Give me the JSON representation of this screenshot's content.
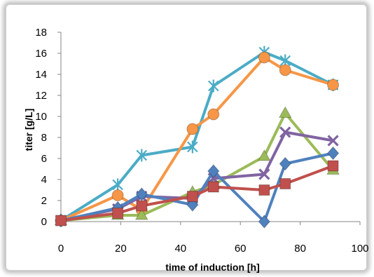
{
  "chart_data": {
    "type": "line",
    "title": "",
    "xlabel": "time of induction [h]",
    "ylabel": "titer  [g/L]",
    "xlim": [
      0,
      100
    ],
    "ylim": [
      0,
      18
    ],
    "xticks": [
      "0",
      "20",
      "40",
      "60",
      "80",
      "100"
    ],
    "yticks": [
      "0",
      "2",
      "4",
      "6",
      "8",
      "10",
      "12",
      "14",
      "16",
      "18"
    ],
    "grid": false,
    "legend": "none",
    "series": [
      {
        "color": "#4bacc6",
        "marker": "star",
        "x": [
          0,
          19,
          27,
          44,
          51,
          68,
          75,
          91
        ],
        "y": [
          0.1,
          3.5,
          6.3,
          7.1,
          12.9,
          16.1,
          15.3,
          13.0
        ]
      },
      {
        "color": "#f79646",
        "marker": "circle",
        "x": [
          0,
          19,
          27,
          44,
          51,
          68,
          75,
          91
        ],
        "y": [
          0.1,
          2.5,
          1.1,
          8.8,
          10.2,
          15.6,
          14.4,
          13.0
        ]
      },
      {
        "color": "#9bbb59",
        "marker": "triangle",
        "x": [
          0,
          19,
          27,
          44,
          51,
          68,
          75,
          91
        ],
        "y": [
          0.1,
          0.6,
          0.6,
          2.8,
          3.5,
          6.2,
          10.3,
          4.9
        ]
      },
      {
        "color": "#8064a2",
        "marker": "x",
        "x": [
          0,
          19,
          27,
          44,
          51,
          68,
          75,
          91
        ],
        "y": [
          0.1,
          1.2,
          2.4,
          2.2,
          4.1,
          4.5,
          8.5,
          7.7
        ]
      },
      {
        "color": "#4f81bd",
        "marker": "diamond",
        "x": [
          0,
          19,
          27,
          44,
          51,
          68,
          75,
          91
        ],
        "y": [
          0.1,
          1.3,
          2.6,
          1.6,
          4.8,
          0.0,
          5.5,
          6.5
        ]
      },
      {
        "color": "#c0504d",
        "marker": "square",
        "x": [
          0,
          19,
          27,
          44,
          51,
          68,
          75,
          91
        ],
        "y": [
          0.1,
          0.8,
          1.5,
          2.4,
          3.3,
          3.0,
          3.6,
          5.3
        ]
      }
    ]
  }
}
